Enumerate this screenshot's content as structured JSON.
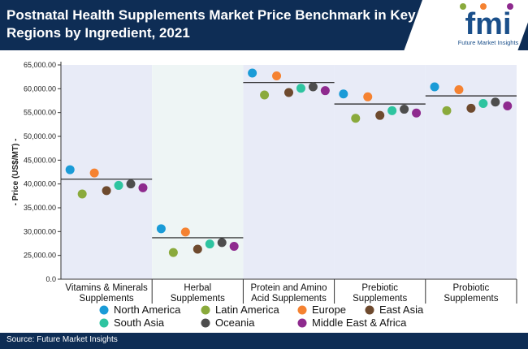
{
  "header": {
    "title": "Postnatal Health Supplements Market Price Benchmark in Key Regions by Ingredient, 2021"
  },
  "logo": {
    "name": "fmi",
    "tagline": "Future Market Insights"
  },
  "footer": {
    "source": "Source: Future Market Insights"
  },
  "chart_data": {
    "type": "scatter",
    "title": "Postnatal Health Supplements Market Price Benchmark in Key Regions by Ingredient, 2021",
    "ylabel": "- Price (US$/MT) -",
    "xlabel": "",
    "ylim": [
      0,
      65000
    ],
    "yticks": [
      "0.0",
      "25,000.00",
      "30,000.00",
      "35,000.00",
      "40,000.00",
      "45,000.00",
      "50,000.00",
      "55,000.00",
      "60,000.00",
      "65,000.00"
    ],
    "ytick_values": [
      0,
      25000,
      30000,
      35000,
      40000,
      45000,
      50000,
      55000,
      60000,
      65000
    ],
    "axis_break": "y-axis jumps from 0.0 to 25,000.00",
    "categories": [
      [
        "Vitamins & Minerals",
        "Supplements"
      ],
      [
        "Herbal",
        "Supplements"
      ],
      [
        "Protein and Amino",
        "Acid Supplements"
      ],
      [
        "Prebiotic",
        "Supplements"
      ],
      [
        "Probiotic",
        "Supplements"
      ]
    ],
    "averages": [
      41000,
      28700,
      61300,
      56800,
      58500
    ],
    "series": [
      {
        "name": "North America",
        "color": "#1a9bd7",
        "values": [
          43000,
          30600,
          63300,
          58900,
          60400
        ]
      },
      {
        "name": "Latin America",
        "color": "#8aaa3c",
        "values": [
          37900,
          25600,
          58700,
          53800,
          55400
        ]
      },
      {
        "name": "Europe",
        "color": "#f58231",
        "values": [
          42300,
          29900,
          62700,
          58300,
          59800
        ]
      },
      {
        "name": "East Asia",
        "color": "#6e4a2e",
        "values": [
          38600,
          26300,
          59200,
          54400,
          55900
        ]
      },
      {
        "name": "South Asia",
        "color": "#2ec4a0",
        "values": [
          39700,
          27400,
          60100,
          55400,
          56900
        ]
      },
      {
        "name": "Oceania",
        "color": "#4d4d4d",
        "values": [
          40000,
          27700,
          60400,
          55700,
          57200
        ]
      },
      {
        "name": "Middle East & Africa",
        "color": "#8e2a8e",
        "values": [
          39200,
          26900,
          59600,
          54900,
          56400
        ]
      }
    ],
    "grid": false,
    "category_bands": [
      "#e8ebf7",
      "#eef5f5",
      "#e8ebf7",
      "#e8ebf7",
      "#e8ebf7"
    ],
    "legend_placement": "bottom",
    "legend_rows": [
      [
        "North America",
        "Latin America",
        "Europe",
        "East Asia"
      ],
      [
        "South Asia",
        "Oceania",
        "Middle East & Africa"
      ]
    ]
  }
}
